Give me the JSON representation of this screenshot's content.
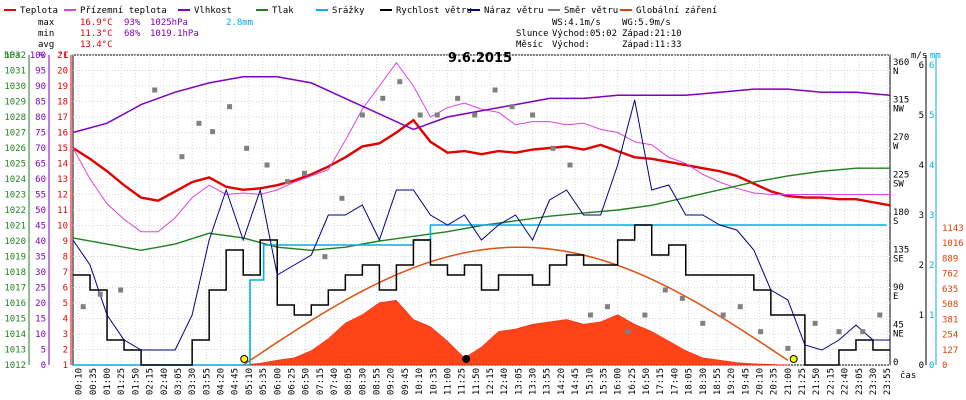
{
  "chart_data": {
    "type": "line",
    "title": "9.6.2015",
    "time_axis_label": "čas",
    "x_tick_labels": [
      "00:10",
      "00:35",
      "01:00",
      "01:25",
      "01:50",
      "02:15",
      "02:40",
      "03:05",
      "03:30",
      "03:55",
      "04:20",
      "04:45",
      "05:10",
      "05:35",
      "06:00",
      "06:25",
      "06:50",
      "07:15",
      "07:40",
      "08:05",
      "08:30",
      "08:55",
      "09:20",
      "09:45",
      "10:10",
      "10:35",
      "11:00",
      "11:25",
      "11:50",
      "12:15",
      "12:40",
      "13:05",
      "13:30",
      "13:55",
      "14:20",
      "14:45",
      "15:10",
      "15:35",
      "16:00",
      "16:25",
      "16:50",
      "17:15",
      "17:40",
      "18:05",
      "18:30",
      "18:55",
      "19:20",
      "19:45",
      "20:10",
      "20:35",
      "21:00",
      "21:25",
      "21:50",
      "22:15",
      "22:40",
      "23:05",
      "23:30",
      "23:55"
    ],
    "legend": [
      {
        "name": "Teplota",
        "color": "#e00000"
      },
      {
        "name": "Přízemní teplota",
        "color": "#e040e0"
      },
      {
        "name": "Vlhkost",
        "color": "#8000c0"
      },
      {
        "name": "Tlak",
        "color": "#208020"
      },
      {
        "name": "Srážky",
        "color": "#00b0e0"
      },
      {
        "name": "Rychlost větru",
        "color": "#000000"
      },
      {
        "name": "Náraz větru",
        "color": "#000080"
      },
      {
        "name": "Směr větru",
        "color": "#808080"
      },
      {
        "name": "Globální záření",
        "color": "#e04000"
      }
    ],
    "stats": {
      "max": {
        "label": "max",
        "temp": "16.9°C",
        "humidity": "93%",
        "pressure": "1025hPa",
        "rain": "2.8mm"
      },
      "min": {
        "label": "min",
        "temp": "11.3°C",
        "humidity": "68%",
        "pressure": "1019.1hPa"
      },
      "avg": {
        "label": "avg",
        "temp": "13.4°C"
      }
    },
    "info": {
      "ws": "WS:4.1m/s",
      "wg": "WG:5.9m/s",
      "sun_label": "Slunce",
      "sun_rise": "Východ:05:02",
      "sun_set": "Západ:21:10",
      "moon_label": "Měsíc",
      "moon_rise": "Východ:",
      "moon_set": "Západ:11:33"
    },
    "axes": {
      "hpa": {
        "unit": "hPa",
        "ticks": [
          "1032",
          "1031",
          "1030",
          "1029",
          "1028",
          "1027",
          "1026",
          "1025",
          "1024",
          "1023",
          "1022",
          "1021",
          "1020",
          "1019",
          "1018",
          "1017",
          "1016",
          "1015",
          "1014",
          "1013",
          "1012"
        ],
        "range": [
          1012,
          1032
        ]
      },
      "humidity": {
        "unit": "%",
        "ticks": [
          "100",
          "95",
          "90",
          "85",
          "80",
          "75",
          "70",
          "65",
          "60",
          "55",
          "50",
          "45",
          "40",
          "35",
          "30",
          "25",
          "20",
          "15",
          "10",
          "5",
          "0"
        ],
        "range": [
          0,
          100
        ]
      },
      "temperature": {
        "unit": "°C",
        "ticks": [
          "21",
          "20",
          "19",
          "18",
          "17",
          "16",
          "15",
          "14",
          "13",
          "12",
          "11",
          "10",
          "9",
          "8",
          "7",
          "6",
          "5",
          "4",
          "3",
          "2",
          "1"
        ],
        "range": [
          1,
          21
        ]
      },
      "wind_speed": {
        "unit": "m/s",
        "ticks": [
          "6",
          "5",
          "4",
          "3",
          "2",
          "1",
          "0"
        ],
        "range": [
          0,
          6
        ]
      },
      "rain": {
        "unit": "mm",
        "ticks": [
          "6",
          "5",
          "4",
          "3",
          "2",
          "1",
          "0"
        ],
        "range": [
          0,
          6
        ]
      },
      "wind_dir": {
        "ticks": [
          {
            "deg": "360",
            "dir": "N"
          },
          {
            "deg": "315",
            "dir": "NW"
          },
          {
            "deg": "270",
            "dir": "W"
          },
          {
            "deg": "225",
            "dir": "SW"
          },
          {
            "deg": "180",
            "dir": "S"
          },
          {
            "deg": "135",
            "dir": "SE"
          },
          {
            "deg": "90",
            "dir": "E"
          },
          {
            "deg": "45",
            "dir": "NE"
          },
          {
            "deg": "0",
            "dir": ""
          }
        ],
        "range": [
          0,
          360
        ]
      },
      "radiation": {
        "ticks": [
          "1143",
          "1016",
          "889",
          "762",
          "635",
          "508",
          "381",
          "254",
          "127",
          "0"
        ],
        "range": [
          0,
          1143
        ]
      }
    },
    "series": [
      {
        "name": "Teplota",
        "unit": "°C",
        "x_hours": [
          0,
          0.5,
          1,
          1.5,
          2,
          2.5,
          3,
          3.5,
          4,
          4.5,
          5,
          5.5,
          6,
          6.5,
          7,
          7.5,
          8,
          8.5,
          9,
          9.5,
          10,
          10.5,
          11,
          11.5,
          12,
          12.5,
          13,
          13.5,
          14,
          14.5,
          15,
          15.5,
          16,
          16.5,
          17,
          17.5,
          18,
          18.5,
          19,
          19.5,
          20,
          20.5,
          21,
          21.5,
          22,
          22.5,
          23,
          23.5,
          24
        ],
        "values": [
          15,
          14.3,
          13.5,
          12.6,
          11.8,
          11.6,
          12.2,
          12.8,
          13.1,
          12.5,
          12.3,
          12.4,
          12.6,
          12.9,
          13.3,
          13.8,
          14.4,
          15.1,
          15.3,
          16,
          16.8,
          15.4,
          14.7,
          14.8,
          14.6,
          14.8,
          14.7,
          14.9,
          15,
          15.1,
          14.9,
          15.2,
          14.8,
          14.4,
          14.3,
          14.1,
          13.9,
          13.7,
          13.5,
          13.2,
          12.7,
          12.2,
          11.9,
          11.8,
          11.8,
          11.7,
          11.7,
          11.5,
          11.3
        ]
      },
      {
        "name": "Přízemní teplota",
        "unit": "°C",
        "x_hours": [
          0,
          0.5,
          1,
          1.5,
          2,
          2.5,
          3,
          3.5,
          4,
          4.5,
          5,
          5.5,
          6,
          6.5,
          7,
          7.5,
          8,
          8.5,
          9,
          9.5,
          10,
          10.5,
          11,
          11.5,
          12,
          12.5,
          13,
          13.5,
          14,
          14.5,
          15,
          15.5,
          16,
          16.5,
          17,
          17.5,
          18,
          18.5,
          19,
          19.5,
          20,
          20.5,
          21,
          21.5,
          22,
          22.5,
          23,
          23.5,
          24
        ],
        "values": [
          15,
          13,
          11.4,
          10.4,
          9.6,
          9.6,
          10.5,
          11.8,
          12.6,
          12,
          12.1,
          12,
          12.3,
          12.8,
          13.2,
          13.6,
          15.5,
          17.5,
          19,
          20.5,
          19,
          17,
          17.6,
          17.9,
          17.5,
          17.3,
          16.5,
          16.7,
          16.7,
          16.5,
          16.6,
          16.2,
          16,
          15.4,
          15.2,
          14.4,
          14,
          13.3,
          12.8,
          12.4,
          12.1,
          12,
          12,
          12,
          12,
          12,
          12,
          12,
          12
        ]
      },
      {
        "name": "Vlhkost",
        "unit": "%",
        "x_hours": [
          0,
          1,
          2,
          3,
          4,
          5,
          6,
          7,
          8,
          9,
          10,
          11,
          12,
          13,
          14,
          15,
          16,
          17,
          18,
          19,
          20,
          21,
          22,
          23,
          24
        ],
        "values": [
          75,
          78,
          84,
          88,
          91,
          93,
          93,
          91,
          86,
          81,
          76,
          80,
          82,
          84,
          86,
          86,
          87,
          87,
          87,
          88,
          89,
          89,
          88,
          88,
          87
        ]
      },
      {
        "name": "Tlak",
        "unit": "hPa",
        "x_hours": [
          0,
          1,
          2,
          3,
          4,
          5,
          6,
          7,
          8,
          9,
          10,
          11,
          12,
          13,
          14,
          15,
          16,
          17,
          18,
          19,
          20,
          21,
          22,
          23,
          24
        ],
        "values": [
          1020.2,
          1019.8,
          1019.4,
          1019.8,
          1020.5,
          1020.2,
          1019.6,
          1019.4,
          1019.6,
          1020,
          1020.3,
          1020.6,
          1021,
          1021.3,
          1021.6,
          1021.8,
          1022,
          1022.3,
          1022.8,
          1023.3,
          1023.8,
          1024.2,
          1024.5,
          1024.7,
          1024.7
        ]
      },
      {
        "name": "Srážky",
        "unit": "mm",
        "x_hours": [
          0,
          5.0,
          5.2,
          5.6,
          6,
          10,
          10.5,
          23.9
        ],
        "values": [
          0,
          0,
          1.7,
          2.4,
          2.4,
          2.5,
          2.8,
          2.8
        ]
      },
      {
        "name": "Rychlost větru",
        "unit": "m/s",
        "x_hours": [
          0,
          0.5,
          1,
          1.5,
          2,
          2.5,
          3,
          3.5,
          4,
          4.5,
          5,
          5.5,
          6,
          6.5,
          7,
          7.5,
          8,
          8.5,
          9,
          9.5,
          10,
          10.5,
          11,
          11.5,
          12,
          12.5,
          13,
          13.5,
          14,
          14.5,
          15,
          15.5,
          16,
          16.5,
          17,
          17.5,
          18,
          18.5,
          19,
          19.5,
          20,
          20.5,
          21,
          21.5,
          22,
          22.5,
          23,
          23.5,
          24
        ],
        "values": [
          1.8,
          1.5,
          0.5,
          0.3,
          0,
          0,
          0,
          0.5,
          1.5,
          2.3,
          1.8,
          2.5,
          1.2,
          1,
          1.2,
          1.5,
          1.8,
          2,
          1.5,
          2,
          2.5,
          2,
          1.8,
          2,
          1.5,
          1.8,
          1.8,
          1.6,
          2,
          2.2,
          2,
          2,
          2.5,
          2.8,
          2.2,
          2.4,
          1.8,
          1.8,
          1.8,
          1.8,
          1.5,
          1,
          1,
          0,
          0,
          0.3,
          0.5,
          0.3,
          0.3
        ]
      },
      {
        "name": "Náraz větru",
        "unit": "m/s",
        "x_hours": [
          0,
          0.5,
          1,
          1.5,
          2,
          2.5,
          3,
          3.5,
          4,
          4.5,
          5,
          5.5,
          6,
          6.5,
          7,
          7.5,
          8,
          8.5,
          9,
          9.5,
          10,
          10.5,
          11,
          11.5,
          12,
          12.5,
          13,
          13.5,
          14,
          14.5,
          15,
          15.5,
          16,
          16.5,
          17,
          17.5,
          18,
          18.5,
          19,
          19.5,
          20,
          20.5,
          21,
          21.5,
          22,
          22.5,
          23,
          23.5,
          24
        ],
        "values": [
          2.5,
          2,
          1,
          0.5,
          0.3,
          0.3,
          0.3,
          1,
          2.5,
          3.5,
          2.5,
          3.5,
          1.8,
          2,
          2.2,
          3,
          3,
          3.2,
          2.5,
          3.5,
          3.5,
          3,
          2.8,
          3,
          2.5,
          2.8,
          3,
          2.5,
          3.3,
          3.5,
          3,
          3,
          4,
          5.3,
          3.5,
          3.6,
          3,
          3,
          2.8,
          2.7,
          2.3,
          1.5,
          1.3,
          0.4,
          0.3,
          0.5,
          0.8,
          0.5,
          0.5
        ]
      },
      {
        "name": "Směr větru",
        "unit": "°",
        "x_hours": [
          0.3,
          0.8,
          1.4,
          2.4,
          3.2,
          3.7,
          4.1,
          4.6,
          5.1,
          5.7,
          6.3,
          6.8,
          7.4,
          7.9,
          8.5,
          9.1,
          9.6,
          10.2,
          10.7,
          11.3,
          11.8,
          12.4,
          12.9,
          13.5,
          14.1,
          14.6,
          15.2,
          15.7,
          16.3,
          16.8,
          17.4,
          17.9,
          18.5,
          19.1,
          19.6,
          20.2,
          21,
          21.8,
          22.5,
          23.2,
          23.7
        ],
        "values": [
          70,
          85,
          90,
          330,
          250,
          290,
          280,
          310,
          260,
          240,
          220,
          230,
          130,
          200,
          300,
          320,
          340,
          300,
          300,
          320,
          300,
          330,
          310,
          300,
          260,
          240,
          60,
          70,
          40,
          60,
          90,
          80,
          50,
          60,
          70,
          40,
          20,
          50,
          40,
          40,
          60
        ]
      },
      {
        "name": "Globální záření",
        "unit": "W/m²",
        "x_hours": [
          5,
          5.5,
          6,
          6.5,
          7,
          7.5,
          8,
          8.5,
          9,
          9.5,
          10,
          10.5,
          11,
          11.5,
          12,
          12.5,
          13,
          13.5,
          14,
          14.5,
          15,
          15.5,
          16,
          16.5,
          17,
          17.5,
          18,
          18.5,
          19,
          19.5,
          20,
          20.5,
          21
        ],
        "values": [
          0,
          15,
          40,
          60,
          120,
          220,
          350,
          420,
          520,
          540,
          380,
          320,
          200,
          60,
          150,
          280,
          300,
          340,
          360,
          380,
          340,
          360,
          420,
          340,
          280,
          200,
          120,
          60,
          40,
          20,
          10,
          5,
          0
        ]
      }
    ]
  }
}
